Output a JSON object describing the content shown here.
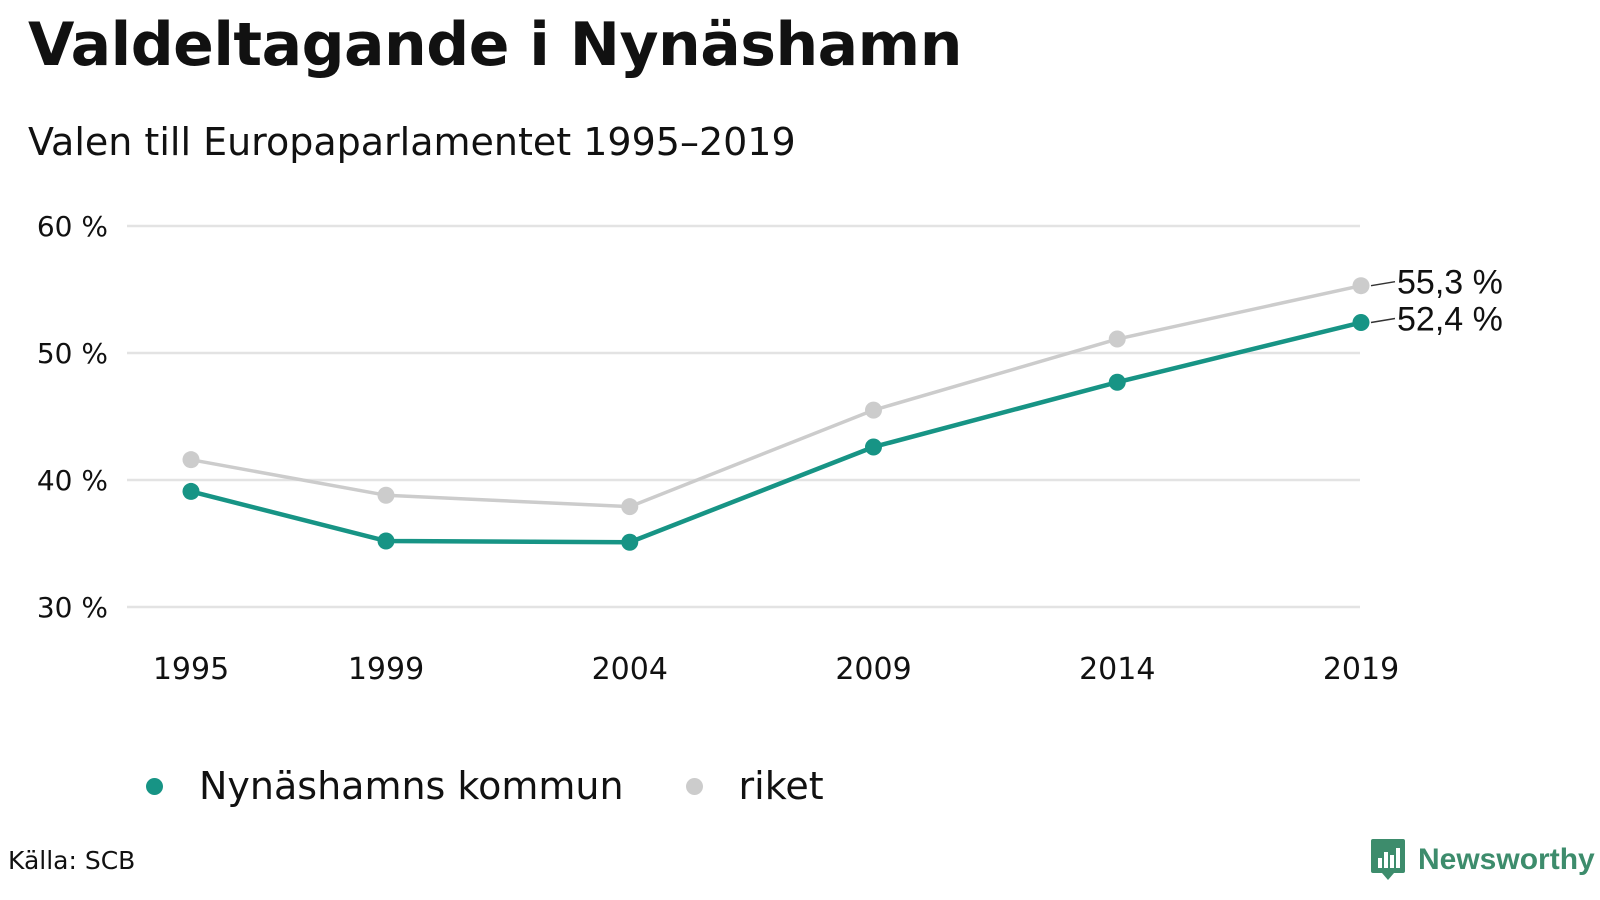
{
  "header": {
    "title": "Valdeltagande i Nynäshamn",
    "subtitle": "Valen till Europaparlamentet 1995–2019"
  },
  "footer": {
    "source": "Källa: SCB",
    "brand": "Newsworthy"
  },
  "colors": {
    "nynashamn": "#179485",
    "riket": "#cccccc",
    "grid": "#e3e3e3",
    "brand": "#3d8c6c"
  },
  "chart_data": {
    "type": "line",
    "title": "Valdeltagande i Nynäshamn",
    "subtitle": "Valen till Europaparlamentet 1995–2019",
    "x": [
      "1995",
      "1999",
      "2004",
      "2009",
      "2014",
      "2019"
    ],
    "ylim": [
      30,
      60
    ],
    "yticks": [
      "30 %",
      "40 %",
      "50 %",
      "60 %"
    ],
    "grid": true,
    "legend_position": "bottom-left",
    "series": [
      {
        "name": "Nynäshamns kommun",
        "values": [
          39.1,
          35.2,
          35.1,
          42.6,
          47.7,
          52.4
        ],
        "color": "#179485",
        "end_label": "52,4 %"
      },
      {
        "name": "riket",
        "values": [
          41.6,
          38.8,
          37.9,
          45.5,
          51.1,
          55.3
        ],
        "color": "#cccccc",
        "end_label": "55,3 %"
      }
    ]
  }
}
